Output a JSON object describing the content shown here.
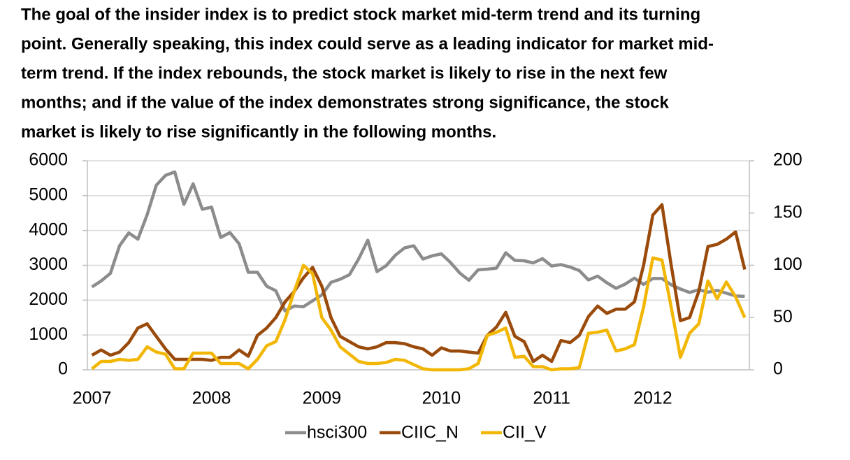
{
  "paragraph": [
    "The goal of the insider index is to predict stock market mid-term trend and its turning",
    "point. Generally speaking, this index could serve as a leading indicator for market mid-",
    "term trend. If the index rebounds, the stock market is likely to rise in the next few",
    "months; and if the value of the index demonstrates strong significance, the stock",
    "market is likely to rise significantly in the following months."
  ],
  "chart_data": {
    "type": "line",
    "categories": [
      "2007",
      null,
      null,
      null,
      null,
      null,
      null,
      null,
      null,
      null,
      null,
      null,
      null,
      "2008",
      null,
      null,
      null,
      null,
      null,
      null,
      null,
      null,
      null,
      null,
      null,
      "2009",
      null,
      null,
      null,
      null,
      null,
      null,
      null,
      null,
      null,
      null,
      null,
      null,
      "2010",
      null,
      null,
      null,
      null,
      null,
      null,
      null,
      null,
      null,
      null,
      null,
      "2011",
      null,
      null,
      null,
      null,
      null,
      null,
      null,
      null,
      null,
      null,
      "2012",
      null,
      null,
      null,
      null,
      null,
      null,
      null,
      null,
      null,
      null
    ],
    "series": [
      {
        "name": "hsci300",
        "color": "#8c8c8c",
        "values": [
          2380,
          2550,
          2770,
          3560,
          3930,
          3750,
          4450,
          5300,
          5580,
          5680,
          4750,
          5340,
          4610,
          4670,
          3800,
          3940,
          3620,
          2800,
          2800,
          2400,
          2270,
          1690,
          1830,
          1810,
          1980,
          2150,
          2510,
          2600,
          2730,
          3180,
          3720,
          2820,
          2990,
          3290,
          3500,
          3560,
          3180,
          3270,
          3330,
          3080,
          2780,
          2570,
          2870,
          2890,
          2920,
          3360,
          3140,
          3130,
          3070,
          3190,
          2980,
          3020,
          2950,
          2850,
          2580,
          2690,
          2500,
          2340,
          2460,
          2630,
          2450,
          2620,
          2620,
          2440,
          2320,
          2220,
          2300,
          2230,
          2280,
          2200,
          2120,
          2110
        ]
      },
      {
        "name": "CIIC_N",
        "color": "#9a4a0a",
        "axis": "y2",
        "values": [
          14,
          19,
          14,
          17,
          26,
          40,
          44,
          32,
          20,
          10,
          10,
          10,
          10,
          9,
          12,
          12,
          19,
          13,
          33,
          40,
          50,
          65,
          75,
          88,
          98,
          80,
          50,
          32,
          27,
          22,
          20,
          22,
          26,
          26,
          25,
          22,
          20,
          14,
          21,
          18,
          18,
          17,
          16,
          33,
          41,
          55,
          32,
          27,
          8,
          14,
          8,
          28,
          26,
          33,
          51,
          61,
          54,
          58,
          58,
          65,
          100,
          148,
          158,
          100,
          47,
          50,
          75,
          118,
          120,
          125,
          132,
          96
        ]
      },
      {
        "name": "CII_V",
        "color": "#f2b705",
        "axis": "y2",
        "values": [
          1,
          8,
          8,
          10,
          9,
          10,
          22,
          17,
          15,
          1,
          1,
          16,
          16,
          16,
          6,
          6,
          6,
          1,
          10,
          23,
          27,
          48,
          75,
          100,
          92,
          50,
          38,
          22,
          15,
          8,
          6,
          6,
          7,
          10,
          9,
          5,
          1,
          0,
          0,
          0,
          0,
          1,
          6,
          33,
          36,
          40,
          12,
          13,
          3,
          3,
          0,
          1,
          1,
          2,
          35,
          36,
          38,
          18,
          20,
          24,
          60,
          107,
          105,
          60,
          12,
          35,
          44,
          85,
          68,
          84,
          70,
          50
        ]
      }
    ],
    "ylim": [
      0,
      6000
    ],
    "yticks": [
      0,
      1000,
      2000,
      3000,
      4000,
      5000,
      6000
    ],
    "y2lim": [
      0,
      200
    ],
    "y2ticks": [
      0,
      50,
      100,
      150,
      200
    ],
    "grid": true,
    "legend": "bottom"
  }
}
